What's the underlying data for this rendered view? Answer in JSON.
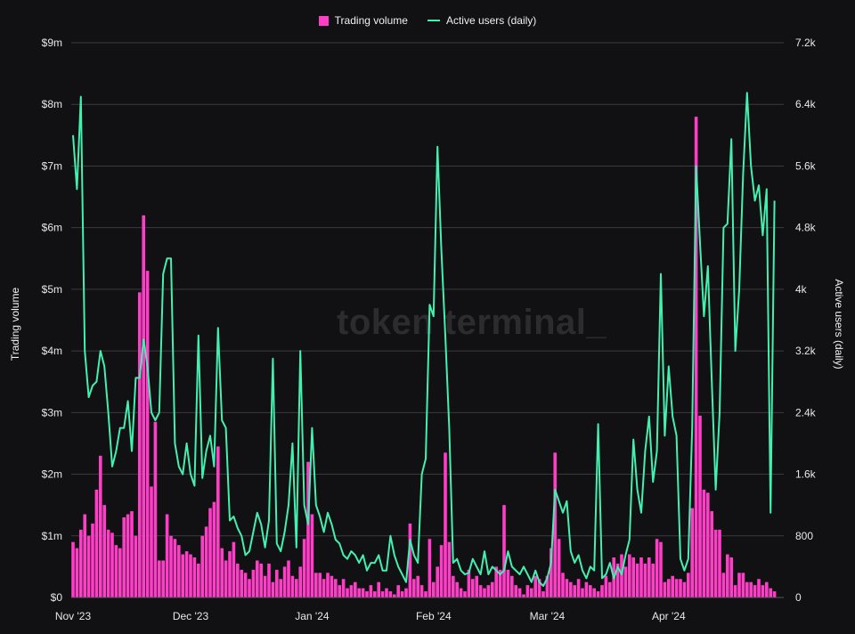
{
  "chart_data": {
    "type": "bar+line",
    "legend": {
      "placement": "top-center"
    },
    "grid": true,
    "watermark": "token terminal_",
    "x_tick_labels": [
      "Nov '23",
      "Dec '23",
      "Jan '24",
      "Feb '24",
      "Mar '24",
      "Apr '24"
    ],
    "left_axis": {
      "label": "Trading volume",
      "unit": "USD millions",
      "range": [
        0,
        9
      ],
      "tick_labels": [
        "$0",
        "$1m",
        "$2m",
        "$3m",
        "$4m",
        "$5m",
        "$6m",
        "$7m",
        "$8m",
        "$9m"
      ]
    },
    "right_axis": {
      "label": "Active users (daily)",
      "unit": "thousands",
      "range": [
        0,
        7.2
      ],
      "tick_labels": [
        "0",
        "800",
        "1.6k",
        "2.4k",
        "3.2k",
        "4k",
        "4.8k",
        "5.6k",
        "6.4k",
        "7.2k"
      ]
    },
    "series": [
      {
        "name": "Trading volume",
        "type": "bar",
        "axis": "left",
        "color": "#ff3ec8"
      },
      {
        "name": "Active users (daily)",
        "type": "line",
        "axis": "right",
        "color": "#44f0b0"
      }
    ],
    "daily_by_month": [
      {
        "month": "2023-11",
        "volume": [
          0.9,
          0.8,
          1.1,
          1.35,
          1.0,
          1.2,
          1.75,
          2.3,
          1.5,
          1.1,
          1.05,
          0.85,
          0.8,
          1.3,
          1.35,
          1.4,
          1.0,
          4.95,
          6.2,
          5.3,
          1.8,
          2.85,
          0.6,
          0.6,
          1.35,
          1.0,
          0.95,
          0.85,
          0.7,
          0.75
        ],
        "users": [
          6.0,
          5.3,
          6.5,
          3.2,
          2.6,
          2.75,
          2.8,
          3.2,
          3.0,
          2.4,
          1.7,
          1.9,
          2.2,
          2.2,
          2.55,
          1.9,
          2.85,
          2.85,
          3.35,
          3.0,
          2.4,
          2.3,
          2.4,
          4.2,
          4.4,
          4.4,
          2.0,
          1.7,
          1.6,
          2.0
        ]
      },
      {
        "month": "2023-12",
        "volume": [
          0.7,
          0.65,
          0.55,
          1.0,
          1.15,
          1.45,
          1.55,
          2.45,
          0.8,
          0.6,
          0.75,
          0.9,
          0.55,
          0.45,
          0.4,
          0.3,
          0.45,
          0.6,
          0.55,
          0.35,
          0.55,
          0.25,
          0.45,
          0.3,
          0.5,
          0.6,
          0.35,
          0.3,
          0.5,
          0.95,
          2.2
        ],
        "users": [
          1.6,
          1.45,
          3.4,
          1.55,
          1.9,
          2.1,
          1.7,
          3.5,
          2.3,
          2.2,
          1.0,
          1.05,
          0.9,
          0.8,
          0.55,
          0.6,
          0.85,
          1.1,
          0.95,
          0.65,
          1.0,
          3.1,
          0.7,
          0.6,
          0.85,
          1.2,
          2.0,
          0.65,
          3.2,
          1.2,
          0.95
        ]
      },
      {
        "month": "2024-01",
        "volume": [
          1.35,
          0.4,
          0.4,
          0.3,
          0.4,
          0.35,
          0.3,
          0.2,
          0.3,
          0.15,
          0.2,
          0.25,
          0.15,
          0.15,
          0.1,
          0.2,
          0.1,
          0.25,
          0.1,
          0.15,
          0.1,
          0.05,
          0.2,
          0.1,
          0.15,
          1.2,
          0.3,
          0.35,
          0.2,
          0.1,
          0.95
        ],
        "users": [
          2.2,
          1.2,
          1.05,
          0.85,
          1.1,
          0.95,
          0.75,
          0.7,
          0.55,
          0.5,
          0.6,
          0.55,
          0.45,
          0.55,
          0.35,
          0.45,
          0.45,
          0.55,
          0.35,
          0.35,
          0.8,
          0.55,
          0.4,
          0.3,
          0.2,
          0.75,
          0.55,
          0.45,
          1.6,
          1.8,
          3.8
        ]
      },
      {
        "month": "2024-02",
        "volume": [
          0.25,
          0.5,
          0.85,
          2.35,
          0.9,
          0.35,
          0.25,
          0.15,
          0.1,
          0.45,
          0.3,
          0.35,
          0.2,
          0.15,
          0.2,
          0.25,
          0.5,
          0.45,
          1.5,
          0.45,
          0.35,
          0.2,
          0.15,
          0.05,
          0.2,
          0.15,
          0.35,
          0.3,
          0.1
        ],
        "users": [
          3.65,
          5.85,
          4.5,
          3.4,
          2.2,
          0.45,
          0.5,
          0.35,
          0.3,
          0.32,
          0.5,
          0.4,
          0.3,
          0.6,
          0.3,
          0.4,
          0.35,
          0.3,
          0.35,
          0.6,
          0.4,
          0.35,
          0.3,
          0.4,
          0.3,
          0.2,
          0.35,
          0.2,
          0.15
        ]
      },
      {
        "month": "2024-03",
        "volume": [
          0.35,
          0.8,
          2.35,
          0.95,
          0.4,
          0.3,
          0.25,
          0.2,
          0.3,
          0.15,
          0.25,
          0.2,
          0.15,
          0.1,
          0.2,
          0.35,
          0.25,
          0.65,
          0.55,
          0.7,
          0.5,
          0.7,
          0.65,
          0.55,
          0.65,
          0.55,
          0.65,
          0.55,
          0.95,
          0.9,
          0.25
        ],
        "users": [
          0.25,
          0.45,
          1.4,
          1.25,
          1.1,
          1.25,
          0.6,
          0.45,
          0.55,
          0.35,
          0.25,
          0.4,
          0.35,
          2.25,
          0.25,
          0.3,
          0.45,
          0.25,
          0.4,
          0.3,
          0.55,
          0.75,
          2.05,
          1.4,
          1.1,
          1.9,
          2.35,
          1.5,
          1.9,
          4.2,
          2.1
        ]
      },
      {
        "month": "2024-04",
        "volume": [
          0.3,
          0.35,
          0.3,
          0.3,
          0.25,
          0.4,
          1.45,
          7.8,
          2.95,
          1.75,
          1.7,
          1.4,
          1.1,
          1.1,
          0.4,
          0.7,
          0.65,
          0.2,
          0.4,
          0.4,
          0.25,
          0.25,
          0.2,
          0.3,
          0.2,
          0.25,
          0.15,
          0.1
        ],
        "users": [
          3.0,
          2.35,
          2.1,
          0.5,
          0.35,
          0.5,
          2.2,
          5.6,
          4.6,
          3.65,
          4.3,
          2.8,
          1.4,
          2.4,
          4.8,
          4.85,
          5.95,
          3.2,
          4.0,
          5.5,
          6.55,
          5.6,
          5.15,
          5.35,
          4.7,
          5.3,
          1.1,
          5.15
        ]
      }
    ]
  }
}
